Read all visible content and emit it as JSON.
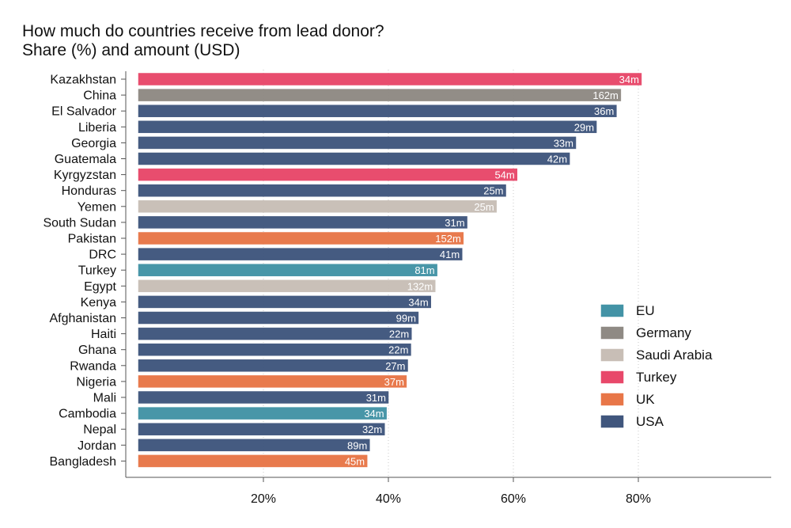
{
  "title_line1": "How much do countries receive from lead donor?",
  "title_line2": "Share (%) and amount (USD)",
  "chart_data": {
    "type": "bar",
    "orientation": "horizontal",
    "title": "How much do countries receive from lead donor? Share (%) and amount (USD)",
    "xlim": [
      0,
      100
    ],
    "xticks": [
      20,
      40,
      60,
      80
    ],
    "xtick_labels": [
      "20%",
      "40%",
      "60%",
      "80%"
    ],
    "grid": "vertical dotted",
    "legend_placement": "right",
    "legend": [
      {
        "name": "EU",
        "color": "#4393a6"
      },
      {
        "name": "Germany",
        "color": "#8f8a84"
      },
      {
        "name": "Saudi Arabia",
        "color": "#c8beb6"
      },
      {
        "name": "Turkey",
        "color": "#e8486a"
      },
      {
        "name": "UK",
        "color": "#e87648"
      },
      {
        "name": "USA",
        "color": "#40567d"
      }
    ],
    "bars": [
      {
        "country": "Kazakhstan",
        "share": 80.5,
        "amount": "34m",
        "donor": "Turkey"
      },
      {
        "country": "China",
        "share": 77.2,
        "amount": "162m",
        "donor": "Germany"
      },
      {
        "country": "El Salvador",
        "share": 76.5,
        "amount": "36m",
        "donor": "USA"
      },
      {
        "country": "Liberia",
        "share": 73.3,
        "amount": "29m",
        "donor": "USA"
      },
      {
        "country": "Georgia",
        "share": 70.0,
        "amount": "33m",
        "donor": "USA"
      },
      {
        "country": "Guatemala",
        "share": 69.0,
        "amount": "42m",
        "donor": "USA"
      },
      {
        "country": "Kyrgyzstan",
        "share": 60.6,
        "amount": "54m",
        "donor": "Turkey"
      },
      {
        "country": "Honduras",
        "share": 58.8,
        "amount": "25m",
        "donor": "USA"
      },
      {
        "country": "Yemen",
        "share": 57.3,
        "amount": "25m",
        "donor": "Saudi Arabia"
      },
      {
        "country": "South Sudan",
        "share": 52.6,
        "amount": "31m",
        "donor": "USA"
      },
      {
        "country": "Pakistan",
        "share": 52.0,
        "amount": "152m",
        "donor": "UK"
      },
      {
        "country": "DRC",
        "share": 51.8,
        "amount": "41m",
        "donor": "USA"
      },
      {
        "country": "Turkey",
        "share": 47.8,
        "amount": "81m",
        "donor": "EU"
      },
      {
        "country": "Egypt",
        "share": 47.5,
        "amount": "132m",
        "donor": "Saudi Arabia"
      },
      {
        "country": "Kenya",
        "share": 46.8,
        "amount": "34m",
        "donor": "USA"
      },
      {
        "country": "Afghanistan",
        "share": 44.8,
        "amount": "99m",
        "donor": "USA"
      },
      {
        "country": "Haiti",
        "share": 43.7,
        "amount": "22m",
        "donor": "USA"
      },
      {
        "country": "Ghana",
        "share": 43.6,
        "amount": "22m",
        "donor": "USA"
      },
      {
        "country": "Rwanda",
        "share": 43.1,
        "amount": "27m",
        "donor": "USA"
      },
      {
        "country": "Nigeria",
        "share": 42.9,
        "amount": "37m",
        "donor": "UK"
      },
      {
        "country": "Mali",
        "share": 40.0,
        "amount": "31m",
        "donor": "USA"
      },
      {
        "country": "Cambodia",
        "share": 39.7,
        "amount": "34m",
        "donor": "EU"
      },
      {
        "country": "Nepal",
        "share": 39.4,
        "amount": "32m",
        "donor": "USA"
      },
      {
        "country": "Jordan",
        "share": 37.0,
        "amount": "89m",
        "donor": "USA"
      },
      {
        "country": "Bangladesh",
        "share": 36.6,
        "amount": "45m",
        "donor": "UK"
      }
    ]
  }
}
